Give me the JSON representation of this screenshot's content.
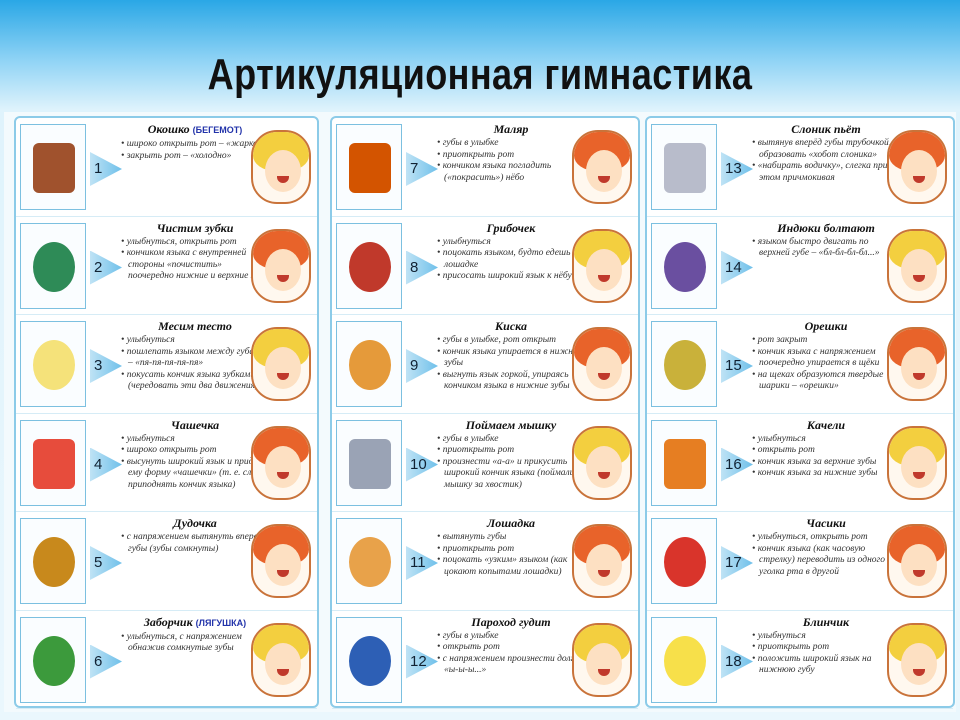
{
  "title": "Артикуляционная гимнастика",
  "colors": {
    "boy_hair": "#e8632a",
    "girl_hair": "#f3cf3f",
    "accent": "#6fc0ea"
  },
  "exercises": [
    {
      "n": "1",
      "name": "Окошко",
      "note": "(БЕГЕМОТ)",
      "steps": [
        "широко открыть рот – «жарко»",
        "закрыть рот – «холодно»"
      ],
      "face": "girl",
      "picture": "window-icon",
      "pc": "#a0522d"
    },
    {
      "n": "2",
      "name": "Чистим зубки",
      "steps": [
        "улыбнуться, открыть рот",
        "кончиком языка с внутренней стороны «почистить» поочередно нижние и верхние зубы"
      ],
      "face": "boy",
      "picture": "toothbrush-icon",
      "pc": "#2e8b57"
    },
    {
      "n": "3",
      "name": "Месим тесто",
      "steps": [
        "улыбнуться",
        "пошлепать языком между губами – «пя-пя-пя-пя-пя»",
        "покусать кончик языка зубками (чередовать эти два движения)"
      ],
      "face": "girl",
      "picture": "dough-icon",
      "pc": "#f5e27a"
    },
    {
      "n": "4",
      "name": "Чашечка",
      "steps": [
        "улыбнуться",
        "широко открыть рот",
        "высунуть широкий язык и придать ему форму «чашечки» (т. е. слегка приподнять кончик языка)"
      ],
      "face": "boy",
      "picture": "cup-icon",
      "pc": "#e74c3c"
    },
    {
      "n": "5",
      "name": "Дудочка",
      "steps": [
        "с напряжением вытянуть вперед губы (зубы сомкнуты)"
      ],
      "face": "boy",
      "picture": "pipe-icon",
      "pc": "#c8891c"
    },
    {
      "n": "6",
      "name": "Заборчик",
      "note": "(ЛЯГУШКА)",
      "steps": [
        "улыбнуться, с напряжением обнажив сомкнутые зубы"
      ],
      "face": "girl",
      "picture": "fence-icon",
      "pc": "#3c9a3c"
    },
    {
      "n": "7",
      "name": "Маляр",
      "steps": [
        "губы в улыбке",
        "приоткрыть рот",
        "кончиком языка погладить («покрасить») нёбо"
      ],
      "face": "boy",
      "picture": "painter-icon",
      "pc": "#d35400"
    },
    {
      "n": "8",
      "name": "Грибочек",
      "steps": [
        "улыбнуться",
        "поцокать языком, будто едешь на лошадке",
        "присосать широкий язык к нёбу"
      ],
      "face": "girl",
      "picture": "mushroom-icon",
      "pc": "#c0392b"
    },
    {
      "n": "9",
      "name": "Киска",
      "steps": [
        "губы в улыбке, рот открыт",
        "кончик языка упирается в нижние зубы",
        "выгнуть язык горкой, упираясь кончиком языка в нижние зубы"
      ],
      "face": "boy",
      "picture": "cat-icon",
      "pc": "#e59a3a"
    },
    {
      "n": "10",
      "name": "Поймаем мышку",
      "steps": [
        "губы в улыбке",
        "приоткрыть рот",
        "произнести «а-а» и прикусить широкий кончик языка (поймали мышку за хвостик)"
      ],
      "face": "girl",
      "picture": "mouse-icon",
      "pc": "#9aa3b5"
    },
    {
      "n": "11",
      "name": "Лошадка",
      "steps": [
        "вытянуть губы",
        "приоткрыть рот",
        "поцокать «узким» языком (как цокают копытами лошадки)"
      ],
      "face": "boy",
      "picture": "horse-icon",
      "pc": "#e8a24a"
    },
    {
      "n": "12",
      "name": "Пароход гудит",
      "steps": [
        "губы в улыбке",
        "открыть рот",
        "с напряжением произнести долгое «ы-ы-ы...»"
      ],
      "face": "girl",
      "picture": "steamship-icon",
      "pc": "#2d5fb5"
    },
    {
      "n": "13",
      "name": "Слоник пьёт",
      "steps": [
        "вытянув вперёд губы трубочкой, образовать «хобот слоника»",
        "«набирать водичку», слегка при этом причмокивая"
      ],
      "face": "boy",
      "picture": "elephant-icon",
      "pc": "#b8bccb"
    },
    {
      "n": "14",
      "name": "Индюки болтают",
      "steps": [
        "языком быстро двигать по верхней губе – «бл-бл-бл-бл...»"
      ],
      "face": "girl",
      "picture": "turkey-icon",
      "pc": "#6a4fa0"
    },
    {
      "n": "15",
      "name": "Орешки",
      "steps": [
        "рот закрыт",
        "кончик языка с напряжением поочередно упирается в щёки",
        "на щеках образуются твердые шарики – «орешки»"
      ],
      "face": "boy",
      "picture": "nuts-icon",
      "pc": "#c9b13a"
    },
    {
      "n": "16",
      "name": "Качели",
      "steps": [
        "улыбнуться",
        "открыть рот",
        "кончик языка за верхние зубы",
        "кончик языка за нижние зубы"
      ],
      "face": "girl",
      "picture": "swing-icon",
      "pc": "#e67e22"
    },
    {
      "n": "17",
      "name": "Часики",
      "steps": [
        "улыбнуться, открыть рот",
        "кончик языка (как часовую стрелку) переводить из одного уголка рта в другой"
      ],
      "face": "boy",
      "picture": "clock-icon",
      "pc": "#d9342b"
    },
    {
      "n": "18",
      "name": "Блинчик",
      "steps": [
        "улыбнуться",
        "приоткрыть рот",
        "положить широкий язык на нижнюю губу"
      ],
      "face": "girl",
      "picture": "pancake-icon",
      "pc": "#f7e04a"
    }
  ]
}
